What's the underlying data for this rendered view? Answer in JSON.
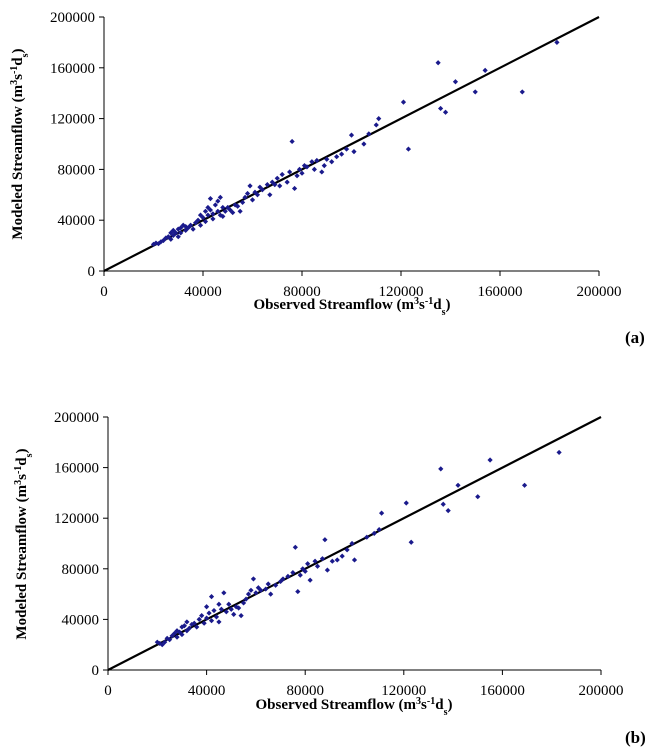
{
  "chart_data": [
    {
      "type": "scatter",
      "panel_label": "(a)",
      "xlabel": "Observed Streamflow (m3s-1ds)",
      "ylabel": "Modeled Streamflow (m3s-1ds)",
      "xlim": [
        0,
        200000
      ],
      "ylim": [
        0,
        200000
      ],
      "xticks": [
        "0",
        "40000",
        "80000",
        "120000",
        "160000",
        "200000"
      ],
      "yticks": [
        "0",
        "40000",
        "80000",
        "120000",
        "160000",
        "200000"
      ],
      "reference_line": {
        "label": "",
        "x": [
          0,
          200000
        ],
        "y": [
          0,
          200000
        ]
      },
      "grid": false,
      "points": [
        [
          20000,
          21000
        ],
        [
          21000,
          22000
        ],
        [
          22000,
          21500
        ],
        [
          23000,
          23000
        ],
        [
          24000,
          24000
        ],
        [
          25000,
          26000
        ],
        [
          26000,
          27000
        ],
        [
          27000,
          25000
        ],
        [
          27000,
          30000
        ],
        [
          28000,
          28000
        ],
        [
          28000,
          32000
        ],
        [
          29000,
          30000
        ],
        [
          30000,
          27000
        ],
        [
          30000,
          33000
        ],
        [
          31000,
          34000
        ],
        [
          31000,
          30000
        ],
        [
          32000,
          36000
        ],
        [
          33000,
          32000
        ],
        [
          33000,
          35000
        ],
        [
          34000,
          34000
        ],
        [
          35000,
          36000
        ],
        [
          36000,
          33000
        ],
        [
          37000,
          38000
        ],
        [
          38000,
          40000
        ],
        [
          39000,
          36000
        ],
        [
          39000,
          44000
        ],
        [
          40000,
          42000
        ],
        [
          41000,
          39000
        ],
        [
          41000,
          47000
        ],
        [
          42000,
          44000
        ],
        [
          42000,
          50000
        ],
        [
          43000,
          48000
        ],
        [
          43000,
          57000
        ],
        [
          44000,
          45000
        ],
        [
          44000,
          41000
        ],
        [
          45000,
          52000
        ],
        [
          46000,
          47000
        ],
        [
          46000,
          55000
        ],
        [
          47000,
          44000
        ],
        [
          47000,
          58000
        ],
        [
          48000,
          50000
        ],
        [
          48000,
          43000
        ],
        [
          49000,
          47000
        ],
        [
          50000,
          50000
        ],
        [
          51000,
          48000
        ],
        [
          52000,
          46000
        ],
        [
          53000,
          52000
        ],
        [
          54000,
          51000
        ],
        [
          55000,
          47000
        ],
        [
          56000,
          54000
        ],
        [
          57000,
          58000
        ],
        [
          58000,
          61000
        ],
        [
          59000,
          67000
        ],
        [
          60000,
          56000
        ],
        [
          61000,
          62000
        ],
        [
          62000,
          60000
        ],
        [
          63000,
          66000
        ],
        [
          64000,
          64000
        ],
        [
          66000,
          68000
        ],
        [
          67000,
          60000
        ],
        [
          68000,
          70000
        ],
        [
          69000,
          68000
        ],
        [
          70000,
          73000
        ],
        [
          71000,
          67000
        ],
        [
          72000,
          76000
        ],
        [
          74000,
          70000
        ],
        [
          75000,
          78000
        ],
        [
          76000,
          102000
        ],
        [
          77000,
          65000
        ],
        [
          78000,
          75000
        ],
        [
          79000,
          80000
        ],
        [
          80000,
          77000
        ],
        [
          81000,
          83000
        ],
        [
          82000,
          82000
        ],
        [
          84000,
          86000
        ],
        [
          85000,
          80000
        ],
        [
          86000,
          87000
        ],
        [
          88000,
          78000
        ],
        [
          89000,
          83000
        ],
        [
          90000,
          88000
        ],
        [
          92000,
          86000
        ],
        [
          94000,
          90000
        ],
        [
          96000,
          92000
        ],
        [
          98000,
          96000
        ],
        [
          100000,
          107000
        ],
        [
          101000,
          94000
        ],
        [
          105000,
          100000
        ],
        [
          107000,
          108000
        ],
        [
          110000,
          115000
        ],
        [
          111000,
          120000
        ],
        [
          121000,
          133000
        ],
        [
          123000,
          96000
        ],
        [
          135000,
          164000
        ],
        [
          136000,
          128000
        ],
        [
          138000,
          125000
        ],
        [
          142000,
          149000
        ],
        [
          150000,
          141000
        ],
        [
          154000,
          158000
        ],
        [
          169000,
          141000
        ],
        [
          183000,
          180000
        ]
      ]
    },
    {
      "type": "scatter",
      "panel_label": "(b)",
      "xlabel": "Observed Streamflow (m3s-1ds)",
      "ylabel": "Modeled Streamflow (m3s-1ds)",
      "xlim": [
        0,
        200000
      ],
      "ylim": [
        0,
        200000
      ],
      "xticks": [
        "0",
        "40000",
        "80000",
        "120000",
        "160000",
        "200000"
      ],
      "yticks": [
        "0",
        "40000",
        "80000",
        "120000",
        "160000",
        "200000"
      ],
      "reference_line": {
        "label": "",
        "x": [
          0,
          200000
        ],
        "y": [
          0,
          200000
        ]
      },
      "grid": false,
      "points": [
        [
          20000,
          22000
        ],
        [
          21000,
          21000
        ],
        [
          22000,
          20000
        ],
        [
          23000,
          22000
        ],
        [
          24000,
          25000
        ],
        [
          25000,
          24000
        ],
        [
          26000,
          27000
        ],
        [
          27000,
          29000
        ],
        [
          28000,
          26000
        ],
        [
          28000,
          31000
        ],
        [
          29000,
          30000
        ],
        [
          30000,
          28000
        ],
        [
          30000,
          34000
        ],
        [
          31000,
          35000
        ],
        [
          32000,
          31000
        ],
        [
          32000,
          38000
        ],
        [
          33000,
          33000
        ],
        [
          34000,
          36000
        ],
        [
          35000,
          37000
        ],
        [
          36000,
          34000
        ],
        [
          37000,
          40000
        ],
        [
          38000,
          43000
        ],
        [
          39000,
          37000
        ],
        [
          40000,
          41000
        ],
        [
          40000,
          50000
        ],
        [
          41000,
          45000
        ],
        [
          42000,
          39000
        ],
        [
          42000,
          58000
        ],
        [
          43000,
          47000
        ],
        [
          44000,
          42000
        ],
        [
          45000,
          52000
        ],
        [
          45000,
          38000
        ],
        [
          46000,
          48000
        ],
        [
          47000,
          61000
        ],
        [
          48000,
          46000
        ],
        [
          49000,
          52000
        ],
        [
          50000,
          48000
        ],
        [
          51000,
          44000
        ],
        [
          52000,
          50000
        ],
        [
          53000,
          49000
        ],
        [
          54000,
          43000
        ],
        [
          55000,
          53000
        ],
        [
          56000,
          56000
        ],
        [
          57000,
          60000
        ],
        [
          58000,
          63000
        ],
        [
          59000,
          72000
        ],
        [
          60000,
          61000
        ],
        [
          61000,
          65000
        ],
        [
          62000,
          63000
        ],
        [
          64000,
          64000
        ],
        [
          65000,
          68000
        ],
        [
          66000,
          60000
        ],
        [
          68000,
          67000
        ],
        [
          70000,
          70000
        ],
        [
          71000,
          72000
        ],
        [
          73000,
          74000
        ],
        [
          75000,
          77000
        ],
        [
          76000,
          97000
        ],
        [
          77000,
          62000
        ],
        [
          78000,
          75000
        ],
        [
          79000,
          80000
        ],
        [
          80000,
          78000
        ],
        [
          81000,
          84000
        ],
        [
          82000,
          71000
        ],
        [
          84000,
          86000
        ],
        [
          85000,
          82000
        ],
        [
          87000,
          88000
        ],
        [
          88000,
          103000
        ],
        [
          89000,
          79000
        ],
        [
          91000,
          86000
        ],
        [
          93000,
          87000
        ],
        [
          95000,
          90000
        ],
        [
          97000,
          95000
        ],
        [
          99000,
          100000
        ],
        [
          100000,
          87000
        ],
        [
          105000,
          105000
        ],
        [
          108000,
          108000
        ],
        [
          110000,
          111000
        ],
        [
          111000,
          124000
        ],
        [
          121000,
          132000
        ],
        [
          123000,
          101000
        ],
        [
          135000,
          159000
        ],
        [
          136000,
          131000
        ],
        [
          138000,
          126000
        ],
        [
          142000,
          146000
        ],
        [
          150000,
          137000
        ],
        [
          155000,
          166000
        ],
        [
          169000,
          146000
        ],
        [
          183000,
          172000
        ]
      ]
    }
  ]
}
